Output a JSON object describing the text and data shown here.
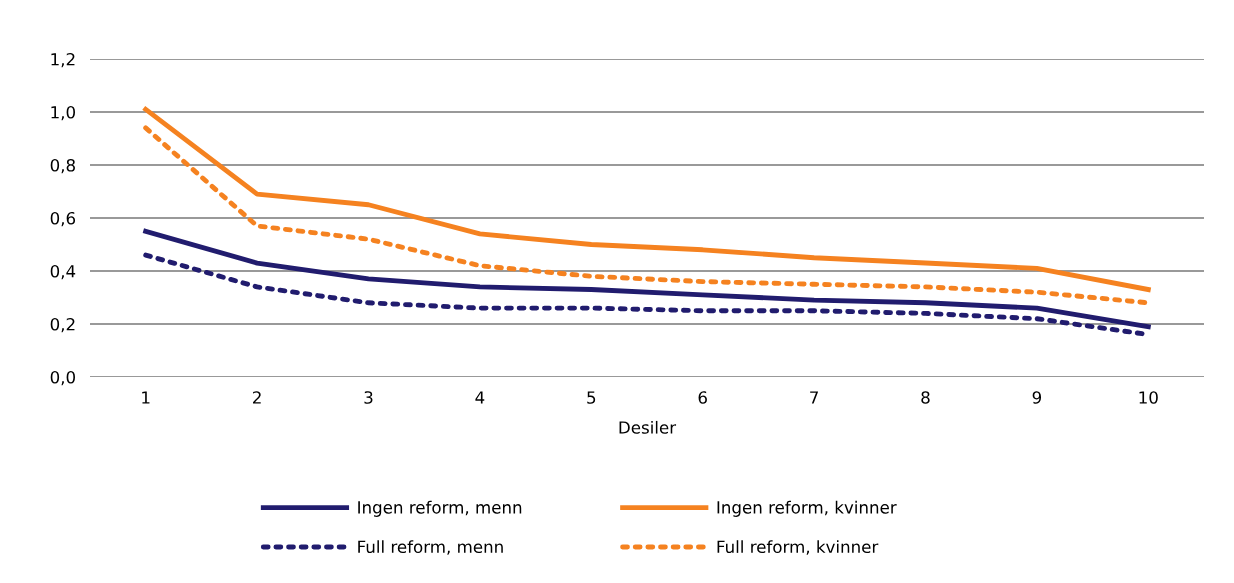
{
  "chart_data": {
    "type": "line",
    "xlabel": "Desiler",
    "categories": [
      "1",
      "2",
      "3",
      "4",
      "5",
      "6",
      "7",
      "8",
      "9",
      "10"
    ],
    "series": [
      {
        "name": "Ingen reform, menn",
        "color": "#211c6e",
        "line_style": "solid",
        "values": [
          0.55,
          0.43,
          0.37,
          0.34,
          0.33,
          0.31,
          0.29,
          0.28,
          0.26,
          0.19
        ]
      },
      {
        "name": "Ingen reform, kvinner",
        "color": "#f58220",
        "line_style": "solid",
        "values": [
          1.01,
          0.69,
          0.65,
          0.54,
          0.5,
          0.48,
          0.45,
          0.43,
          0.41,
          0.33
        ]
      },
      {
        "name": "Full reform, menn",
        "color": "#211c6e",
        "line_style": "dotted",
        "values": [
          0.46,
          0.34,
          0.28,
          0.26,
          0.26,
          0.25,
          0.25,
          0.24,
          0.22,
          0.16
        ]
      },
      {
        "name": "Full reform, kvinner",
        "color": "#f58220",
        "line_style": "dotted",
        "values": [
          0.94,
          0.57,
          0.52,
          0.42,
          0.38,
          0.36,
          0.35,
          0.34,
          0.32,
          0.28
        ]
      }
    ],
    "ylim": [
      0,
      1.2
    ],
    "yticks": [
      {
        "value": 0,
        "label": "0,0"
      },
      {
        "value": 0.2,
        "label": "0,2"
      },
      {
        "value": 0.4,
        "label": "0,4"
      },
      {
        "value": 0.6,
        "label": "0,6"
      },
      {
        "value": 0.8,
        "label": "0,8"
      },
      {
        "value": 1.0,
        "label": "1,0"
      },
      {
        "value": 1.2,
        "label": "1,2"
      }
    ],
    "grid": "y",
    "legend": "bottom",
    "marker": "none"
  }
}
